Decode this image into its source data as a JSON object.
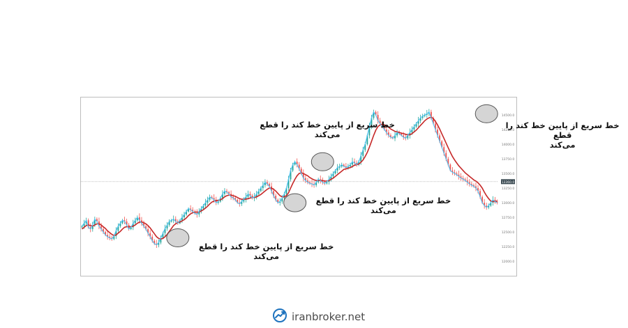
{
  "annotations": [
    {
      "text": "خط سریع از پایین خط کند را قطع\nمی‌کند",
      "x": 45,
      "y": 12400
    },
    {
      "text": "خط سریع از پایین خط کند را قطع\nمی‌کند",
      "x": 100,
      "y": 13000
    },
    {
      "text": "خط سریع از پایین خط کند را قطع\nمی‌کند",
      "x": 113,
      "y": 13700
    },
    {
      "text": "خط سریع از پایین خط کند را قطع\nمی‌کند",
      "x": 190,
      "y": 14520
    }
  ],
  "colors": {
    "up_candle": "#26a69a",
    "down_candle": "#ef5350",
    "fast_ma": "#4fc3f7",
    "slow_ma": "#c62828",
    "marker_fill": "#c7c7c7",
    "marker_stroke": "#555555",
    "frame": "#bdbdbd",
    "watermark_icon": "#1e73be"
  },
  "watermark": {
    "text": "iranbroker.net",
    "icon": "trend-chart-icon"
  },
  "chart_data": {
    "type": "line",
    "ylim": [
      11800,
      14750
    ],
    "yticks": [
      "14500.0",
      "14250.0",
      "14000.0",
      "13750.0",
      "13500.0",
      "13250.0",
      "13000.0",
      "12750.0",
      "12500.0",
      "12250.0",
      "12000.0"
    ],
    "price_tag": "13360.0",
    "series": [
      {
        "values": [
          12600,
          12650,
          12700,
          12580,
          12550,
          12620,
          12720,
          12680,
          12600,
          12550,
          12500,
          12450,
          12420,
          12400,
          12380,
          12430,
          12520,
          12600,
          12650,
          12700,
          12680,
          12620,
          12550,
          12580,
          12650,
          12700,
          12750,
          12700,
          12650,
          12600,
          12550,
          12480,
          12420,
          12350,
          12300,
          12280,
          12320,
          12400,
          12480,
          12560,
          12620,
          12680,
          12700,
          12720,
          12680,
          12650,
          12700,
          12750,
          12800,
          12850,
          12900,
          12880,
          12850,
          12820,
          12800,
          12850,
          12900,
          12950,
          13000,
          13050,
          13100,
          13080,
          13050,
          13000,
          13020,
          13080,
          13150,
          13200,
          13180,
          13150,
          13100,
          13080,
          13050,
          13000,
          12980,
          13020,
          13060,
          13100,
          13150,
          13120,
          13080,
          13100,
          13150,
          13200,
          13250,
          13300,
          13350,
          13320,
          13280,
          13200,
          13120,
          13050,
          13000,
          13020,
          13080,
          13150,
          13250,
          13400,
          13550,
          13650,
          13700,
          13650,
          13580,
          13500,
          13420,
          13380,
          13350,
          13330,
          13320,
          13300,
          13350,
          13400,
          13380,
          13350,
          13330,
          13360,
          13400,
          13450,
          13500,
          13550,
          13600,
          13620,
          13650,
          13620,
          13600,
          13620,
          13650,
          13700,
          13680,
          13650,
          13700,
          13800,
          13900,
          14000,
          14150,
          14300,
          14450,
          14550,
          14500,
          14400,
          14350,
          14300,
          14250,
          14200,
          14150,
          14120,
          14100,
          14150,
          14200,
          14180,
          14150,
          14120,
          14100,
          14150,
          14200,
          14250,
          14300,
          14350,
          14400,
          14450,
          14480,
          14500,
          14520,
          14550,
          14450,
          14350,
          14250,
          14150,
          14050,
          13950,
          13850,
          13750,
          13650,
          13550,
          13520,
          13500,
          13480,
          13450,
          13420,
          13400,
          13380,
          13350,
          13320,
          13300,
          13280,
          13250,
          13200,
          13100,
          13000,
          12950,
          12920,
          12950,
          13000,
          13050,
          13020,
          13000
        ]
      },
      {
        "values": [
          12550,
          12580,
          12610,
          12620,
          12610,
          12600,
          12620,
          12640,
          12640,
          12620,
          12590,
          12560,
          12520,
          12490,
          12460,
          12440,
          12450,
          12480,
          12510,
          12550,
          12580,
          12590,
          12590,
          12590,
          12600,
          12620,
          12650,
          12670,
          12670,
          12660,
          12640,
          12610,
          12570,
          12520,
          12470,
          12420,
          12390,
          12380,
          12390,
          12420,
          12460,
          12510,
          12560,
          12610,
          12640,
          12660,
          12670,
          12690,
          12710,
          12740,
          12780,
          12810,
          12830,
          12840,
          12840,
          12840,
          12860,
          12880,
          12910,
          12940,
          12980,
          13010,
          13030,
          13040,
          13040,
          13050,
          13070,
          13100,
          13120,
          13130,
          13130,
          13120,
          13110,
          13090,
          13070,
          13060,
          13060,
          13060,
          13070,
          13080,
          13090,
          13090,
          13100,
          13120,
          13140,
          13170,
          13200,
          13230,
          13250,
          13250,
          13230,
          13200,
          13160,
          13120,
          13100,
          13100,
          13120,
          13170,
          13250,
          13330,
          13400,
          13460,
          13500,
          13510,
          13500,
          13480,
          13460,
          13430,
          13410,
          13390,
          13380,
          13380,
          13380,
          13380,
          13370,
          13370,
          13380,
          13400,
          13420,
          13450,
          13480,
          13510,
          13540,
          13570,
          13580,
          13590,
          13600,
          13620,
          13640,
          13650,
          13660,
          13690,
          13730,
          13790,
          13860,
          13950,
          14050,
          14150,
          14240,
          14300,
          14330,
          14340,
          14330,
          14310,
          14290,
          14260,
          14240,
          14220,
          14210,
          14200,
          14190,
          14180,
          14170,
          14160,
          14160,
          14180,
          14210,
          14240,
          14280,
          14320,
          14360,
          14400,
          14430,
          14450,
          14460,
          14440,
          14390,
          14330,
          14260,
          14180,
          14100,
          14020,
          13940,
          13860,
          13790,
          13730,
          13680,
          13630,
          13590,
          13550,
          13510,
          13480,
          13450,
          13420,
          13390,
          13370,
          13340,
          13300,
          13250,
          13180,
          13120,
          13070,
          13030,
          13020,
          13020,
          13030
        ]
      }
    ]
  }
}
